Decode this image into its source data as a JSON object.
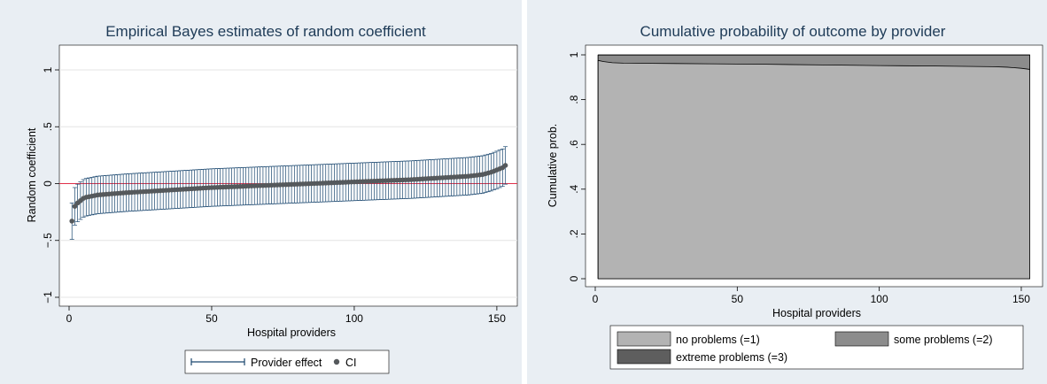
{
  "chart_data": [
    {
      "type": "scatter",
      "title": "Empirical Bayes estimates of random coefficient",
      "xlabel": "Hospital providers",
      "ylabel": "Random coefficient",
      "xlim": [
        0,
        155
      ],
      "ylim": [
        -1,
        1
      ],
      "x_ticks": [
        {
          "v": 0,
          "label": "0"
        },
        {
          "v": 50,
          "label": "50"
        },
        {
          "v": 100,
          "label": "100"
        },
        {
          "v": 150,
          "label": "150"
        }
      ],
      "y_ticks": [
        {
          "v": -1,
          "label": "−1"
        },
        {
          "v": -0.5,
          "label": "−.5"
        },
        {
          "v": 0,
          "label": "0"
        },
        {
          "v": 0.5,
          "label": ".5"
        },
        {
          "v": 1,
          "label": "1"
        }
      ],
      "grid": true,
      "reference_line": {
        "y": 0,
        "color": "#e0304a"
      },
      "n_providers": 153,
      "estimate_profile": {
        "x": [
          1,
          2,
          3,
          4,
          5,
          6,
          8,
          10,
          15,
          20,
          30,
          40,
          50,
          60,
          70,
          80,
          90,
          100,
          110,
          120,
          130,
          140,
          145,
          148,
          150,
          152,
          153
        ],
        "y": [
          -0.33,
          -0.2,
          -0.17,
          -0.15,
          -0.13,
          -0.12,
          -0.11,
          -0.1,
          -0.09,
          -0.08,
          -0.065,
          -0.05,
          -0.035,
          -0.025,
          -0.015,
          -0.005,
          0.005,
          0.015,
          0.025,
          0.035,
          0.05,
          0.065,
          0.08,
          0.1,
          0.12,
          0.14,
          0.16
        ]
      },
      "ci_half_width": 0.165,
      "ci_half_width_first": 0.16,
      "series": [
        {
          "name": "Provider effect",
          "kind": "capped-spike",
          "color": "#1a476f"
        },
        {
          "name": "CI",
          "kind": "marker",
          "color": "#55595c"
        }
      ],
      "legend_position": "bottom"
    },
    {
      "type": "area",
      "title": "Cumulative probability of outcome by provider",
      "xlabel": "Hospital providers",
      "ylabel": "Cumulative prob.",
      "xlim": [
        0,
        155
      ],
      "ylim": [
        0,
        1
      ],
      "x_ticks": [
        {
          "v": 0,
          "label": "0"
        },
        {
          "v": 50,
          "label": "50"
        },
        {
          "v": 100,
          "label": "100"
        },
        {
          "v": 150,
          "label": "150"
        }
      ],
      "y_ticks": [
        {
          "v": 0,
          "label": "0"
        },
        {
          "v": 0.2,
          "label": ".2"
        },
        {
          "v": 0.4,
          "label": ".4"
        },
        {
          "v": 0.6,
          "label": ".6"
        },
        {
          "v": 0.8,
          "label": ".8"
        },
        {
          "v": 1,
          "label": "1"
        }
      ],
      "grid": false,
      "x": [
        1,
        3,
        6,
        10,
        20,
        40,
        60,
        80,
        100,
        120,
        140,
        145,
        150,
        153
      ],
      "series": [
        {
          "name": "no problems (=1)",
          "color": "#b3b3b3",
          "cum_upper": [
            0.975,
            0.97,
            0.965,
            0.963,
            0.962,
            0.96,
            0.958,
            0.955,
            0.952,
            0.95,
            0.947,
            0.945,
            0.94,
            0.935
          ]
        },
        {
          "name": "some problems (=2)",
          "color": "#8c8c8c",
          "cum_upper": [
            0.999,
            0.999,
            0.999,
            0.999,
            0.999,
            0.999,
            0.999,
            0.999,
            0.999,
            0.999,
            0.999,
            0.999,
            0.999,
            0.999
          ]
        },
        {
          "name": "extreme problems (=3)",
          "color": "#5e5e5e",
          "cum_upper": [
            1,
            1,
            1,
            1,
            1,
            1,
            1,
            1,
            1,
            1,
            1,
            1,
            1,
            1
          ]
        }
      ],
      "legend_position": "bottom"
    }
  ]
}
